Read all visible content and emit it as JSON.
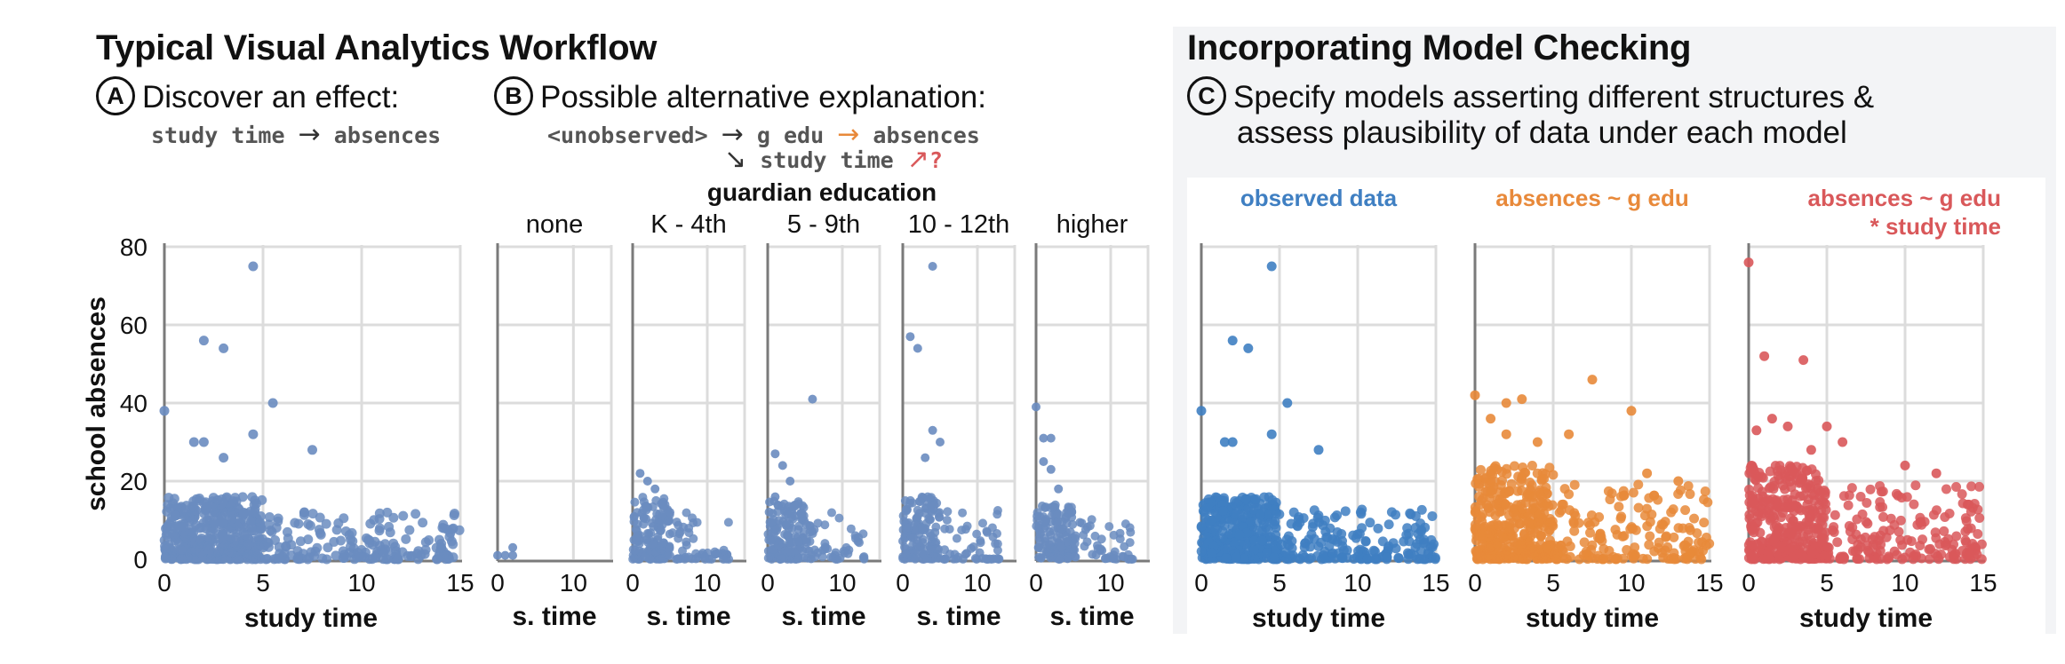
{
  "left": {
    "title": "Typical Visual Analytics Workflow",
    "stepA": {
      "badge": "A",
      "text": "Discover an effect:",
      "code_from": "study time",
      "arrow": "→",
      "code_to": "absences"
    },
    "stepB": {
      "badge": "B",
      "text": "Possible alternative explanation:",
      "code_unobs": "<unobserved>",
      "arrow1": "→",
      "code_gedu": "g edu",
      "arrow2": "→",
      "code_abs": "absences",
      "arrow3": "↘",
      "code_study": "study time",
      "arrow4": "↗",
      "qmark": "?"
    }
  },
  "right": {
    "title": "Incorporating Model Checking",
    "stepC": {
      "badge": "C",
      "line1": "Specify models asserting different structures &",
      "line2": "assess plausibility of data under each model"
    }
  },
  "colors": {
    "blue_left": "#6a8cc0",
    "blue_right": "#3f7fc2",
    "orange": "#e8893a",
    "red": "#d9585a",
    "grid": "#dcdcdc",
    "axis": "#7a7a7a"
  },
  "chart_data": [
    {
      "type": "scatter",
      "name": "overview",
      "xlabel": "study time",
      "ylabel": "school absences",
      "xlim": [
        0,
        15
      ],
      "ylim": [
        0,
        80
      ],
      "xticks": [
        0,
        5,
        10,
        15
      ],
      "yticks": [
        0,
        20,
        40,
        60,
        80
      ],
      "outliers": [
        [
          0,
          38
        ],
        [
          2,
          56
        ],
        [
          3,
          54
        ],
        [
          4.5,
          75
        ],
        [
          5.5,
          40
        ],
        [
          4.5,
          32
        ],
        [
          7.5,
          28
        ],
        [
          1.5,
          30
        ],
        [
          2,
          30
        ],
        [
          3,
          26
        ]
      ],
      "cluster": {
        "x_dense": [
          0,
          5
        ],
        "x_sparse": [
          5,
          15
        ],
        "y_max": 16
      }
    },
    {
      "type": "scatter_facets",
      "name": "guardian-education-facets",
      "facet_title": "guardian education",
      "facets": [
        {
          "label": "none",
          "points": [
            [
              0,
              1
            ],
            [
              1,
              1
            ],
            [
              2,
              3
            ],
            [
              2,
              1
            ]
          ],
          "cluster": null
        },
        {
          "label": "K - 4th",
          "outliers": [
            [
              1,
              22
            ],
            [
              2,
              20
            ],
            [
              3,
              18
            ],
            [
              4,
              14
            ],
            [
              5,
              12
            ]
          ],
          "cluster": {
            "x_dense": [
              0,
              5
            ],
            "x_sparse": [
              5,
              13
            ],
            "y_max": 16
          }
        },
        {
          "label": "5 - 9th",
          "outliers": [
            [
              6,
              41
            ],
            [
              1,
              27
            ],
            [
              2,
              24
            ],
            [
              3,
              20
            ],
            [
              1,
              16
            ]
          ],
          "cluster": {
            "x_dense": [
              0,
              5
            ],
            "x_sparse": [
              5,
              13
            ],
            "y_max": 15
          }
        },
        {
          "label": "10 - 12th",
          "outliers": [
            [
              4,
              75
            ],
            [
              1,
              57
            ],
            [
              2,
              54
            ],
            [
              4,
              33
            ],
            [
              5,
              30
            ],
            [
              3,
              26
            ]
          ],
          "cluster": {
            "x_dense": [
              0,
              5
            ],
            "x_sparse": [
              5,
              13
            ],
            "y_max": 16
          }
        },
        {
          "label": "higher",
          "outliers": [
            [
              0,
              39
            ],
            [
              1,
              31
            ],
            [
              2,
              31
            ],
            [
              1,
              25
            ],
            [
              2,
              23
            ],
            [
              3,
              18
            ]
          ],
          "cluster": {
            "x_dense": [
              0,
              5
            ],
            "x_sparse": [
              5,
              13
            ],
            "y_max": 14
          }
        }
      ],
      "xlabel": "s. time",
      "xlim": [
        0,
        15
      ],
      "xticks": [
        0,
        10
      ],
      "ylim": [
        0,
        80
      ]
    },
    {
      "type": "scatter_models",
      "name": "model-check",
      "xlim": [
        0,
        15
      ],
      "ylim": [
        0,
        80
      ],
      "xticks": [
        0,
        5,
        10,
        15
      ],
      "panels": [
        {
          "title": "observed data",
          "title2": "",
          "color_key": "blue_right",
          "xlabel": "study time",
          "outliers": [
            [
              0,
              38
            ],
            [
              2,
              56
            ],
            [
              3,
              54
            ],
            [
              4.5,
              75
            ],
            [
              5.5,
              40
            ],
            [
              4.5,
              32
            ],
            [
              7.5,
              28
            ],
            [
              1.5,
              30
            ],
            [
              2,
              30
            ]
          ],
          "cluster": {
            "x_dense": [
              0,
              5
            ],
            "x_sparse": [
              5,
              15
            ],
            "y_max": 16
          }
        },
        {
          "title": "absences ~ g edu",
          "title2": "",
          "color_key": "orange",
          "xlabel": "study time",
          "outliers": [
            [
              0,
              42
            ],
            [
              2,
              40
            ],
            [
              3,
              41
            ],
            [
              7.5,
              46
            ],
            [
              10,
              38
            ],
            [
              6,
              32
            ],
            [
              1,
              36
            ],
            [
              2,
              32
            ],
            [
              4,
              30
            ],
            [
              11,
              22
            ],
            [
              13,
              20
            ]
          ],
          "cluster": {
            "x_dense": [
              0,
              5
            ],
            "x_sparse": [
              5,
              15
            ],
            "y_max": 24
          }
        },
        {
          "title": "absences ~ g edu",
          "title2": "* study time",
          "color_key": "red",
          "xlabel": "study time",
          "outliers": [
            [
              0,
              76
            ],
            [
              1,
              52
            ],
            [
              3.5,
              51
            ],
            [
              0.5,
              33
            ],
            [
              1.5,
              36
            ],
            [
              2.5,
              34
            ],
            [
              5,
              34
            ],
            [
              6,
              30
            ],
            [
              4,
              28
            ],
            [
              10,
              24
            ],
            [
              12,
              22
            ],
            [
              14,
              14
            ]
          ],
          "cluster": {
            "x_dense": [
              0,
              5
            ],
            "x_sparse": [
              5,
              15
            ],
            "y_max": 24
          }
        }
      ]
    }
  ]
}
